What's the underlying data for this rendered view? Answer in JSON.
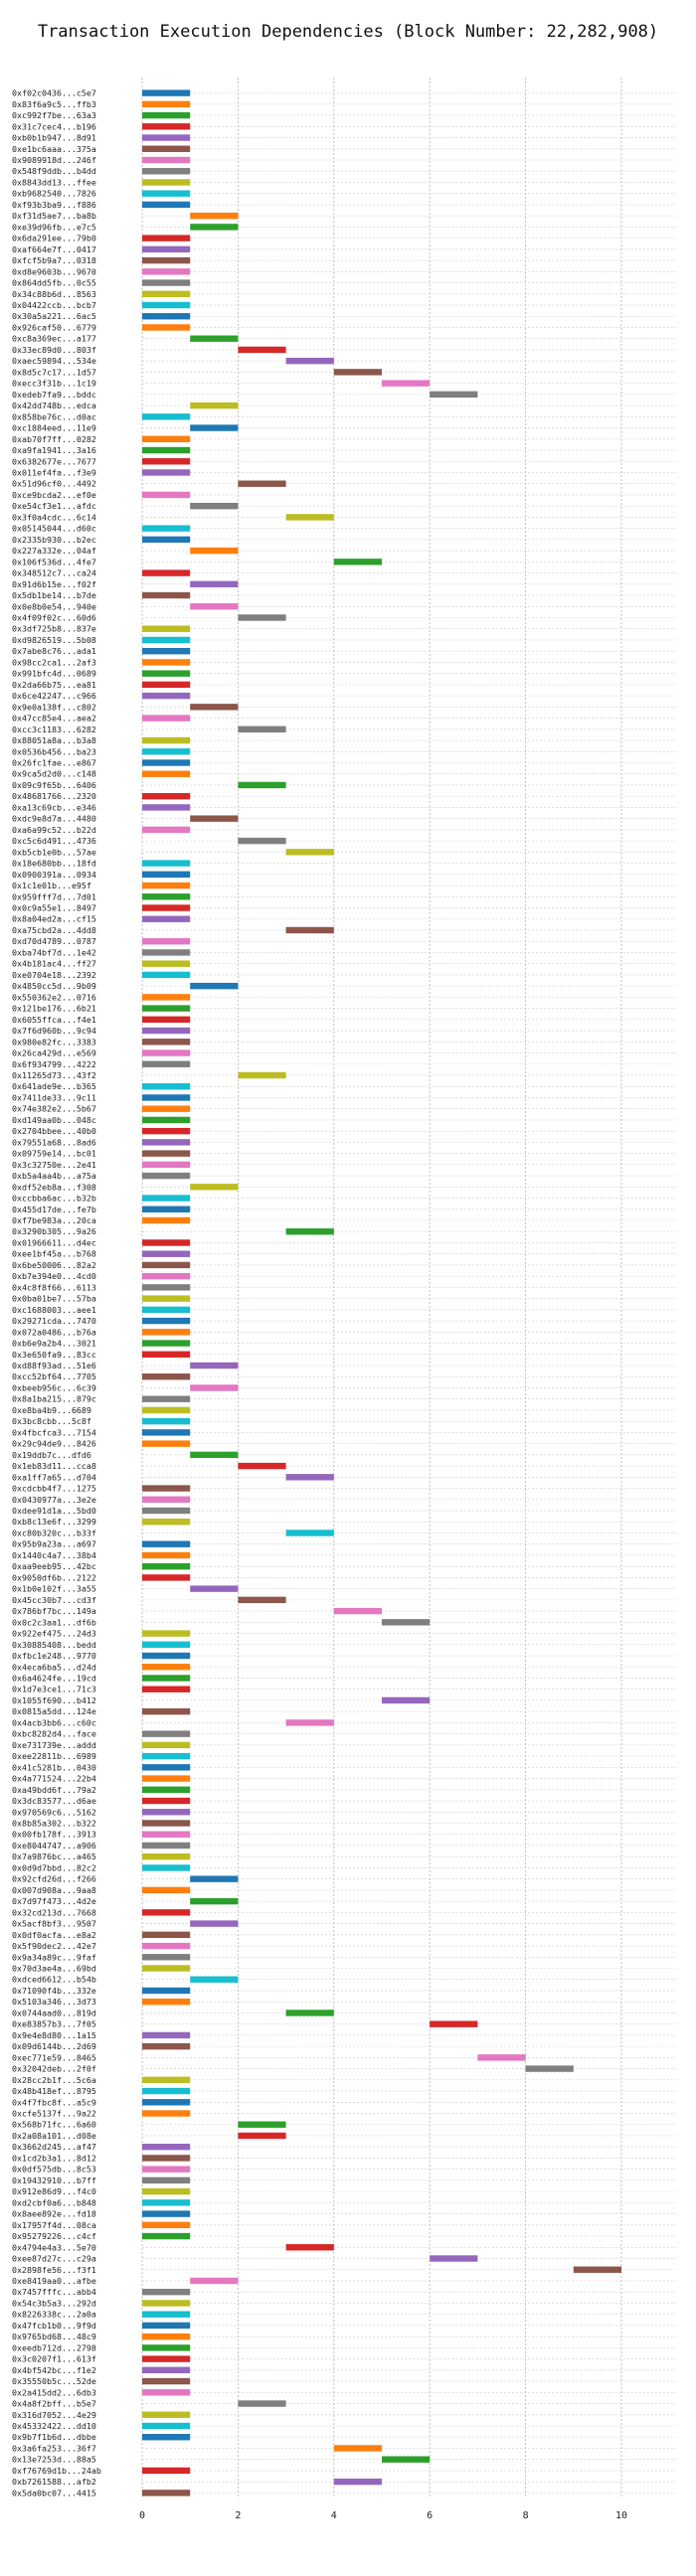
{
  "chart_data": {
    "type": "bar",
    "orientation": "horizontal",
    "subtype": "gantt",
    "title": "Transaction Execution Dependencies (Block Number: 22,282,908)",
    "xlabel": "",
    "ylabel": "",
    "xlim": [
      0,
      11
    ],
    "xticks": [
      0,
      2,
      4,
      6,
      8,
      10
    ],
    "grid": true,
    "palette": [
      "#1f77b4",
      "#ff7f0e",
      "#2ca02c",
      "#d62728",
      "#9467bd",
      "#8c564b",
      "#e377c2",
      "#7f7f7f",
      "#bcbd22",
      "#17becf"
    ],
    "transactions": [
      {
        "label": "0xf02c0436...c5e7",
        "start": 0
      },
      {
        "label": "0x83f6a9c5...ffb3",
        "start": 0
      },
      {
        "label": "0xc992f7be...63a3",
        "start": 0
      },
      {
        "label": "0x31c7cec4...b196",
        "start": 0
      },
      {
        "label": "0xb0b1b947...8d91",
        "start": 0
      },
      {
        "label": "0xe1bc6aaa...375a",
        "start": 0
      },
      {
        "label": "0x9089918d...246f",
        "start": 0
      },
      {
        "label": "0x548f9ddb...b4dd",
        "start": 0
      },
      {
        "label": "0x8843dd13...ffee",
        "start": 0
      },
      {
        "label": "0xb9682540...7826",
        "start": 0
      },
      {
        "label": "0xf93b3ba9...f886",
        "start": 0
      },
      {
        "label": "0xf31d5ae7...ba8b",
        "start": 1
      },
      {
        "label": "0xe39d96fb...e7c5",
        "start": 1
      },
      {
        "label": "0x6da291ee...79b0",
        "start": 0
      },
      {
        "label": "0xaf664e7f...0417",
        "start": 0
      },
      {
        "label": "0xfcf5b9a7...0318",
        "start": 0
      },
      {
        "label": "0xd8e9603b...9670",
        "start": 0
      },
      {
        "label": "0x864dd5fb...0c55",
        "start": 0
      },
      {
        "label": "0x34c88b6d...8563",
        "start": 0
      },
      {
        "label": "0x04422ccb...bcb7",
        "start": 0
      },
      {
        "label": "0x30a5a221...6ac5",
        "start": 0
      },
      {
        "label": "0x926caf50...6779",
        "start": 0
      },
      {
        "label": "0xc8a369ec...a177",
        "start": 1
      },
      {
        "label": "0x33ec89d0...803f",
        "start": 2
      },
      {
        "label": "0xaec59894...534e",
        "start": 3
      },
      {
        "label": "0x8d5c7c17...1d57",
        "start": 4
      },
      {
        "label": "0xecc3f31b...1c19",
        "start": 5
      },
      {
        "label": "0xedeb7fa9...bddc",
        "start": 6
      },
      {
        "label": "0x42dd748b...edca",
        "start": 1
      },
      {
        "label": "0x858be76c...d0ac",
        "start": 0
      },
      {
        "label": "0xc1884eed...11e9",
        "start": 1
      },
      {
        "label": "0xab70f7ff...0282",
        "start": 0
      },
      {
        "label": "0xa9fa1941...3a16",
        "start": 0
      },
      {
        "label": "0x6382677e...7677",
        "start": 0
      },
      {
        "label": "0x011ef4fa...f3e9",
        "start": 0
      },
      {
        "label": "0x51d96cf0...4492",
        "start": 2
      },
      {
        "label": "0xce9bcda2...ef0e",
        "start": 0
      },
      {
        "label": "0xe54cf3e1...afdc",
        "start": 1
      },
      {
        "label": "0x3f0a4cdc...6c14",
        "start": 3
      },
      {
        "label": "0x05145044...d60c",
        "start": 0
      },
      {
        "label": "0x2335b930...b2ec",
        "start": 0
      },
      {
        "label": "0x227a332e...04af",
        "start": 1
      },
      {
        "label": "0x106f536d...4fe7",
        "start": 4
      },
      {
        "label": "0x348512c7...ca24",
        "start": 0
      },
      {
        "label": "0x91d6b15e...f02f",
        "start": 1
      },
      {
        "label": "0x5db1be14...b7de",
        "start": 0
      },
      {
        "label": "0x0e8b0e54...940e",
        "start": 1
      },
      {
        "label": "0x4f09f02c...60d6",
        "start": 2
      },
      {
        "label": "0x3df725b8...837e",
        "start": 0
      },
      {
        "label": "0xd9826519...5b08",
        "start": 0
      },
      {
        "label": "0x7abe8c76...ada1",
        "start": 0
      },
      {
        "label": "0x98cc2ca1...2af3",
        "start": 0
      },
      {
        "label": "0x991bfc4d...0689",
        "start": 0
      },
      {
        "label": "0x2da66b75...ea81",
        "start": 0
      },
      {
        "label": "0x6ce42247...c966",
        "start": 0
      },
      {
        "label": "0x9e0a138f...c802",
        "start": 1
      },
      {
        "label": "0x47cc85e4...aea2",
        "start": 0
      },
      {
        "label": "0xcc3c1183...6282",
        "start": 2
      },
      {
        "label": "0x88051a8a...b3a8",
        "start": 0
      },
      {
        "label": "0x0536b456...ba23",
        "start": 0
      },
      {
        "label": "0x26fc1fae...e867",
        "start": 0
      },
      {
        "label": "0x9ca5d2d0...c148",
        "start": 0
      },
      {
        "label": "0x09c9f65b...6406",
        "start": 2
      },
      {
        "label": "0x48681766...2320",
        "start": 0
      },
      {
        "label": "0xa13c69cb...e346",
        "start": 0
      },
      {
        "label": "0xdc9e8d7a...4480",
        "start": 1
      },
      {
        "label": "0xa6a99c52...b22d",
        "start": 0
      },
      {
        "label": "0xc5c6d491...4736",
        "start": 2
      },
      {
        "label": "0xb5cb1e0b...57ae",
        "start": 3
      },
      {
        "label": "0x18e680bb...18fd",
        "start": 0
      },
      {
        "label": "0x0900391a...0934",
        "start": 0
      },
      {
        "label": "0x1c1e01b...e95f",
        "start": 0
      },
      {
        "label": "0x959fff7d...7d01",
        "start": 0
      },
      {
        "label": "0x0c9a55e1...8497",
        "start": 0
      },
      {
        "label": "0x8a04ed2a...cf15",
        "start": 0
      },
      {
        "label": "0xa75cbd2a...4dd8",
        "start": 3
      },
      {
        "label": "0xd70d4789...0787",
        "start": 0
      },
      {
        "label": "0xba74bf7d...1e42",
        "start": 0
      },
      {
        "label": "0x4b181ac4...ff27",
        "start": 0
      },
      {
        "label": "0xe0704e18...2392",
        "start": 0
      },
      {
        "label": "0x4850cc5d...9b09",
        "start": 1
      },
      {
        "label": "0x550362e2...0716",
        "start": 0
      },
      {
        "label": "0x121be176...6b21",
        "start": 0
      },
      {
        "label": "0x6055ffca...f4e1",
        "start": 0
      },
      {
        "label": "0x7f6d960b...9c94",
        "start": 0
      },
      {
        "label": "0x980e82fc...3383",
        "start": 0
      },
      {
        "label": "0x26ca429d...e569",
        "start": 0
      },
      {
        "label": "0x6f934799...4222",
        "start": 0
      },
      {
        "label": "0x11265d73...43f2",
        "start": 2
      },
      {
        "label": "0x641ade9e...b365",
        "start": 0
      },
      {
        "label": "0x7411de33...9c11",
        "start": 0
      },
      {
        "label": "0x74e382e2...5b67",
        "start": 0
      },
      {
        "label": "0xd149aa0b...048c",
        "start": 0
      },
      {
        "label": "0x2704bbee...40b0",
        "start": 0
      },
      {
        "label": "0x79551a68...8ad6",
        "start": 0
      },
      {
        "label": "0x09759e14...bc01",
        "start": 0
      },
      {
        "label": "0x3c32750e...2e41",
        "start": 0
      },
      {
        "label": "0xb5a4aa4b...a75a",
        "start": 0
      },
      {
        "label": "0xdf52eb8a...f308",
        "start": 1
      },
      {
        "label": "0xccbba6ac...b32b",
        "start": 0
      },
      {
        "label": "0x455d17de...fe7b",
        "start": 0
      },
      {
        "label": "0xf7be983a...20ca",
        "start": 0
      },
      {
        "label": "0x3290b305...9a26",
        "start": 3
      },
      {
        "label": "0x01966611...d4ec",
        "start": 0
      },
      {
        "label": "0xee1bf45a...b768",
        "start": 0
      },
      {
        "label": "0x6be50006...82a2",
        "start": 0
      },
      {
        "label": "0xb7e394e0...4cd0",
        "start": 0
      },
      {
        "label": "0x4c8f8f66...6113",
        "start": 0
      },
      {
        "label": "0x0ba01be7...57ba",
        "start": 0
      },
      {
        "label": "0xc1688003...aee1",
        "start": 0
      },
      {
        "label": "0x29271cda...7470",
        "start": 0
      },
      {
        "label": "0x072a0486...b76a",
        "start": 0
      },
      {
        "label": "0xb6e9a2b4...3021",
        "start": 0
      },
      {
        "label": "0x3e650fa9...83cc",
        "start": 0
      },
      {
        "label": "0xd88f93ad...51e6",
        "start": 1
      },
      {
        "label": "0xcc52bf64...7705",
        "start": 0
      },
      {
        "label": "0xbeeb956c...6c39",
        "start": 1
      },
      {
        "label": "0x8a1ba215...879c",
        "start": 0
      },
      {
        "label": "0xe8ba4b9...6689",
        "start": 0
      },
      {
        "label": "0x3bc8cbb...5c8f",
        "start": 0
      },
      {
        "label": "0x4fbcfca3...7154",
        "start": 0
      },
      {
        "label": "0x29c94de9...8426",
        "start": 0
      },
      {
        "label": "0x19ddb7c...dfd6",
        "start": 1
      },
      {
        "label": "0x1eb83d11...cca8",
        "start": 2
      },
      {
        "label": "0xa1ff7a65...d704",
        "start": 3
      },
      {
        "label": "0xcdcbb4f7...1275",
        "start": 0
      },
      {
        "label": "0x0430977a...3e2e",
        "start": 0
      },
      {
        "label": "0xdee91d1a...5bd0",
        "start": 0
      },
      {
        "label": "0xb8c13e6f...3299",
        "start": 0
      },
      {
        "label": "0xc80b320c...b33f",
        "start": 3
      },
      {
        "label": "0x95b9a23a...a697",
        "start": 0
      },
      {
        "label": "0x1440c4a7...38b4",
        "start": 0
      },
      {
        "label": "0xaa9eeb95...42bc",
        "start": 0
      },
      {
        "label": "0x9050df6b...2122",
        "start": 0
      },
      {
        "label": "0x1b0e102f...3a55",
        "start": 1
      },
      {
        "label": "0x45cc30b7...cd3f",
        "start": 2
      },
      {
        "label": "0x786bf7bc...149a",
        "start": 4
      },
      {
        "label": "0x0c2c3aa1...df6b",
        "start": 5
      },
      {
        "label": "0x922ef475...24d3",
        "start": 0
      },
      {
        "label": "0x30885408...bedd",
        "start": 0
      },
      {
        "label": "0xfbc1e248...9770",
        "start": 0
      },
      {
        "label": "0x4eca6ba5...d24d",
        "start": 0
      },
      {
        "label": "0x6a4624fe...19cd",
        "start": 0
      },
      {
        "label": "0x1d7e3ce1...71c3",
        "start": 0
      },
      {
        "label": "0x1055f690...b412",
        "start": 5
      },
      {
        "label": "0x0815a5dd...124e",
        "start": 0
      },
      {
        "label": "0x4acb3bb6...c60c",
        "start": 3
      },
      {
        "label": "0xbc8282d4...face",
        "start": 0
      },
      {
        "label": "0xe731739e...addd",
        "start": 0
      },
      {
        "label": "0xee22811b...6989",
        "start": 0
      },
      {
        "label": "0x41c5281b...0430",
        "start": 0
      },
      {
        "label": "0x4a771524...22b4",
        "start": 0
      },
      {
        "label": "0xa49bdd6f...79a2",
        "start": 0
      },
      {
        "label": "0x3dc83577...d6ae",
        "start": 0
      },
      {
        "label": "0x970569c6...5162",
        "start": 0
      },
      {
        "label": "0x8b85a302...b322",
        "start": 0
      },
      {
        "label": "0x00fb178f...3913",
        "start": 0
      },
      {
        "label": "0xe8044747...a906",
        "start": 0
      },
      {
        "label": "0x7a9876bc...a465",
        "start": 0
      },
      {
        "label": "0x0d9d7bbd...82c2",
        "start": 0
      },
      {
        "label": "0x92cfd26d...f266",
        "start": 1
      },
      {
        "label": "0x007d908a...9aa8",
        "start": 0
      },
      {
        "label": "0x7d97f473...4d2e",
        "start": 1
      },
      {
        "label": "0x32cd213d...7668",
        "start": 0
      },
      {
        "label": "0x5acf8bf3...9507",
        "start": 1
      },
      {
        "label": "0x0df0acfa...e8a2",
        "start": 0
      },
      {
        "label": "0x5f90dec2...42e7",
        "start": 0
      },
      {
        "label": "0x9a34a89c...9faf",
        "start": 0
      },
      {
        "label": "0x70d3ae4a...69bd",
        "start": 0
      },
      {
        "label": "0xdced6612...b54b",
        "start": 1
      },
      {
        "label": "0x71090f4b...332e",
        "start": 0
      },
      {
        "label": "0x5103a346...3d73",
        "start": 0
      },
      {
        "label": "0x0744aad0...819d",
        "start": 3
      },
      {
        "label": "0xe83857b3...7f05",
        "start": 6
      },
      {
        "label": "0x9e4e8d80...1a15",
        "start": 0
      },
      {
        "label": "0x09d6144b...2d69",
        "start": 0
      },
      {
        "label": "0xec771e59...8465",
        "start": 7
      },
      {
        "label": "0x32042deb...2f0f",
        "start": 8
      },
      {
        "label": "0x28cc2b1f...5c6a",
        "start": 0
      },
      {
        "label": "0x48b418ef...8795",
        "start": 0
      },
      {
        "label": "0x4f7fbc8f...a5c9",
        "start": 0
      },
      {
        "label": "0xcfe5137f...9a22",
        "start": 0
      },
      {
        "label": "0x568b71fc...6a60",
        "start": 2
      },
      {
        "label": "0x2a08a101...d08e",
        "start": 2
      },
      {
        "label": "0x3662d245...af47",
        "start": 0
      },
      {
        "label": "0x1cd2b3a1...8d12",
        "start": 0
      },
      {
        "label": "0x0df575db...8c53",
        "start": 0
      },
      {
        "label": "0x19432910...b7ff",
        "start": 0
      },
      {
        "label": "0x912e86d9...f4c0",
        "start": 0
      },
      {
        "label": "0xd2cbf0a6...b848",
        "start": 0
      },
      {
        "label": "0x8aee892e...fd18",
        "start": 0
      },
      {
        "label": "0x17957f4d...08ca",
        "start": 0
      },
      {
        "label": "0x95279226...c4cf",
        "start": 0
      },
      {
        "label": "0x4794e4a3...5e70",
        "start": 3
      },
      {
        "label": "0xee87d27c...c29a",
        "start": 6
      },
      {
        "label": "0x2898fe56...f3f1",
        "start": 9
      },
      {
        "label": "0xe8419aa0...afbe",
        "start": 1
      },
      {
        "label": "0x7457fffc...abb4",
        "start": 0
      },
      {
        "label": "0x54c3b5a3...292d",
        "start": 0
      },
      {
        "label": "0x8226338c...2a0a",
        "start": 0
      },
      {
        "label": "0x47fcb1b0...9f9d",
        "start": 0
      },
      {
        "label": "0x9765bd68...48c9",
        "start": 0
      },
      {
        "label": "0xeedb712d...2798",
        "start": 0
      },
      {
        "label": "0x3c0207f1...613f",
        "start": 0
      },
      {
        "label": "0x4bf542bc...f1e2",
        "start": 0
      },
      {
        "label": "0x35550b5c...52de",
        "start": 0
      },
      {
        "label": "0x2a415dd2...6db3",
        "start": 0
      },
      {
        "label": "0x4a8f2bff...b5e7",
        "start": 2
      },
      {
        "label": "0x316d7052...4e29",
        "start": 0
      },
      {
        "label": "0x45332422...dd10",
        "start": 0
      },
      {
        "label": "0x9b7f1b6d...dbbe",
        "start": 0
      },
      {
        "label": "0x3a6fa253...36f7",
        "start": 4
      },
      {
        "label": "0x13e7253d...88a5",
        "start": 5
      },
      {
        "label": "0xf76769d1b...24ab",
        "start": 0
      },
      {
        "label": "0xb7261588...afb2",
        "start": 4
      },
      {
        "label": "0x5da0bc07...4415",
        "start": 0
      }
    ]
  }
}
